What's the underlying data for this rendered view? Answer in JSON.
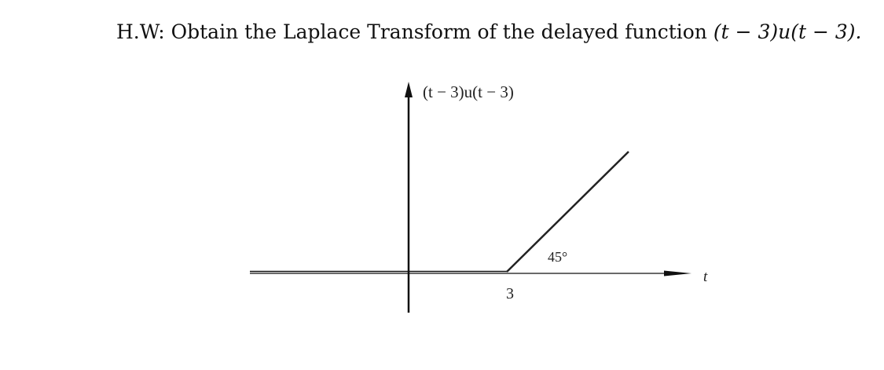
{
  "header": {
    "title": "H.W: Obtain the Laplace Transform of the delayed function",
    "expression": "(t − 3)u(t − 3)."
  },
  "figure": {
    "y_label": "(t − 3)u(t − 3)",
    "angle_label": "45°",
    "x_label": "t",
    "tick_label": "3"
  }
}
